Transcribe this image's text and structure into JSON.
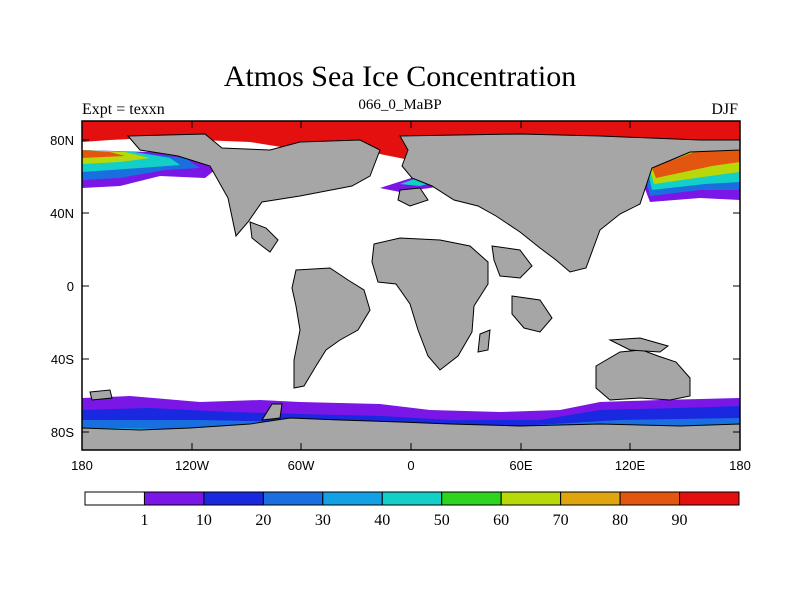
{
  "title": "Atmos Sea Ice Concentration",
  "subtitle": {
    "left": "Expt = texxn",
    "center": "066_0_MaBP",
    "right": "DJF"
  },
  "colors": {
    "land": "#a6a6a6",
    "ocean": "#ffffff",
    "outline": "#000000"
  },
  "axes": {
    "lat_ticks": [
      "80N",
      "40N",
      "0",
      "40S",
      "80S"
    ],
    "lon_ticks": [
      "180",
      "120W",
      "60W",
      "0",
      "60E",
      "120E",
      "180"
    ]
  },
  "colorbar": {
    "label_values": [
      "1",
      "10",
      "20",
      "30",
      "40",
      "50",
      "60",
      "70",
      "80",
      "90"
    ],
    "colors": [
      "#ffffff",
      "#7a16e6",
      "#1a28e0",
      "#1a6fe0",
      "#13a1e6",
      "#12cfc8",
      "#2fd41f",
      "#b9d80a",
      "#e0a50c",
      "#e2560f",
      "#e40f0f"
    ]
  }
}
